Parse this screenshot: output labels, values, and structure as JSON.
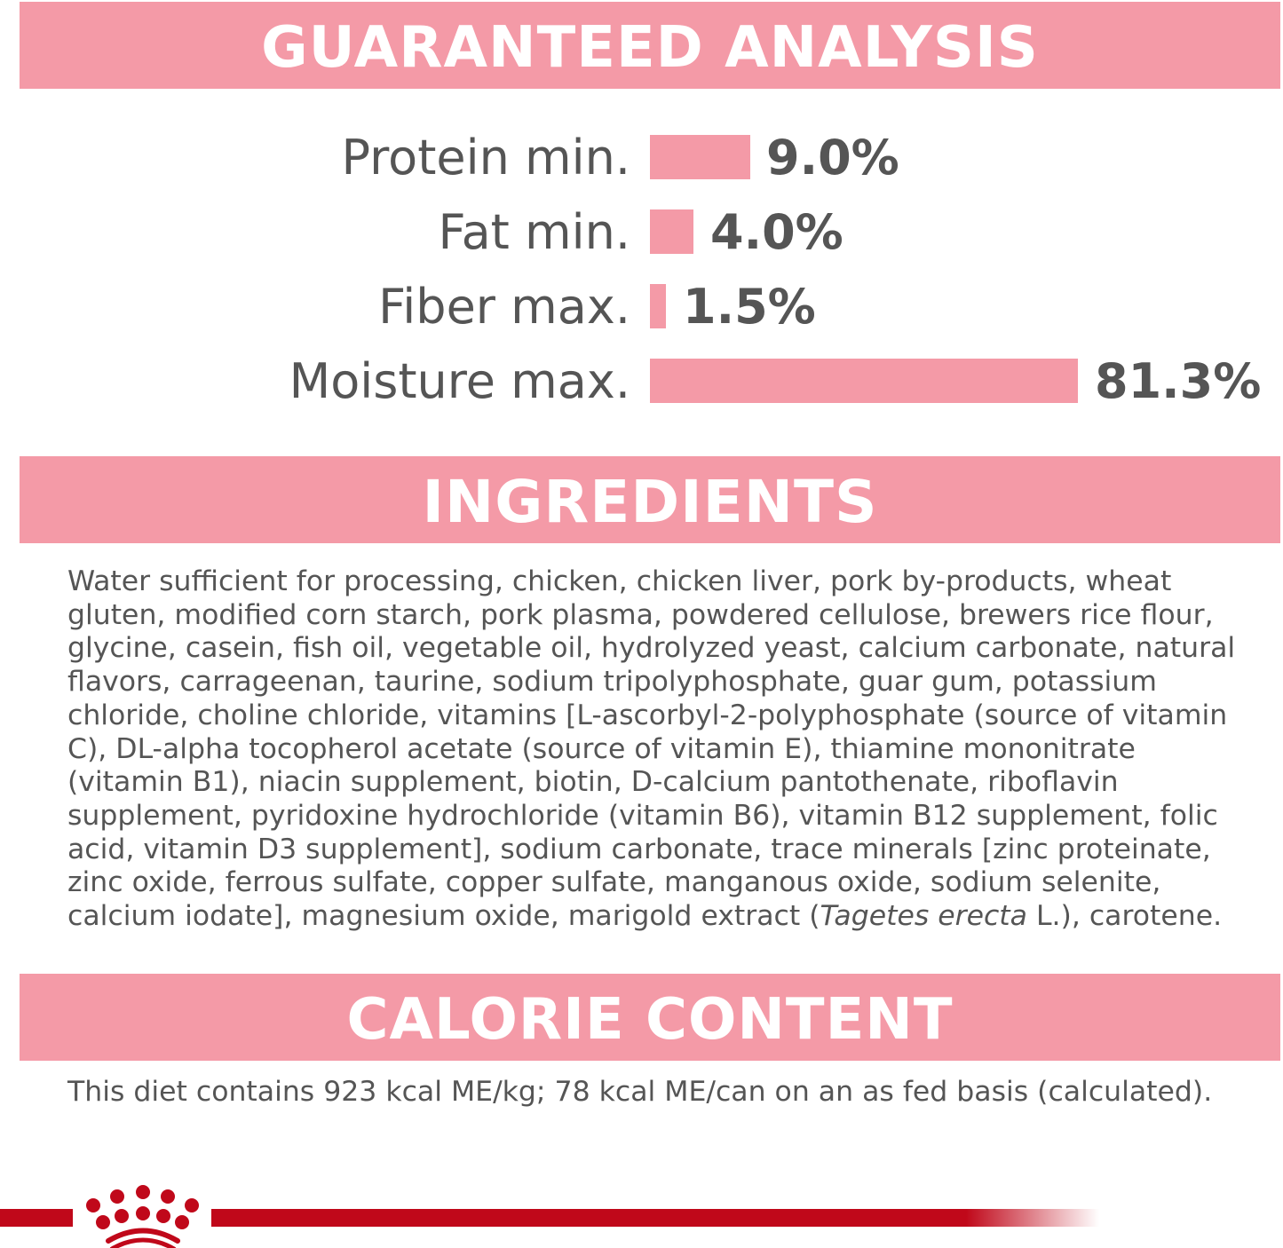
{
  "guaranteed_analysis": {
    "title": "GUARANTEED ANALYSIS",
    "items": [
      {
        "label": "Protein min.",
        "value": "9.0%"
      },
      {
        "label": "Fat min.",
        "value": "4.0%"
      },
      {
        "label": "Fiber max.",
        "value": "1.5%"
      },
      {
        "label": "Moisture max.",
        "value": "81.3%"
      }
    ]
  },
  "chart_data": {
    "type": "bar",
    "orientation": "horizontal",
    "categories": [
      "Protein min.",
      "Fat min.",
      "Fiber max.",
      "Moisture max."
    ],
    "values": [
      9.0,
      4.0,
      1.5,
      81.3
    ],
    "unit": "%",
    "bar_color": "#f49aa7"
  },
  "ingredients": {
    "title": "INGREDIENTS",
    "text_before_italic": "Water sufficient for processing, chicken, chicken liver, pork by-products, wheat gluten, modified corn starch, pork plasma, powdered cellulose, brewers rice flour, glycine, casein, fish oil, vegetable oil, hydrolyzed yeast, calcium carbonate, natural flavors, carrageenan, taurine, sodium tripolyphosphate, guar gum, potassium chloride, choline chloride, vitamins [L-ascorbyl-2-polyphosphate (source of vitamin C), DL-alpha tocopherol acetate (source of vitamin E), thiamine mononitrate (vitamin B1), niacin supplement, biotin, D-calcium pantothenate, riboflavin supplement, pyridoxine hydrochloride (vitamin B6), vitamin B12 supplement, folic acid, vitamin D3 supplement], sodium carbonate, trace minerals [zinc proteinate, zinc oxide, ferrous sulfate, copper sulfate, manganous oxide, sodium selenite, calcium iodate], magnesium oxide, marigold extract (",
    "italic": "Tagetes erecta",
    "text_after_italic": " L.), carotene."
  },
  "calorie_content": {
    "title": "CALORIE CONTENT",
    "text": "This diet contains 923 kcal ME/kg; 78 kcal ME/can on an as fed basis (calculated)."
  },
  "footer": {
    "logo": "crown-logo",
    "brand_color": "#c0081a"
  }
}
